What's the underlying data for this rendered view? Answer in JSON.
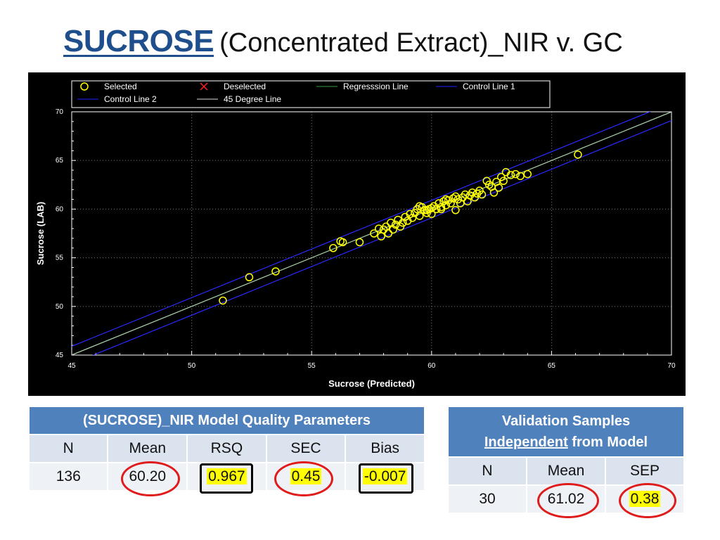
{
  "slide": {
    "title_main": "SUCROSE",
    "title_sub": "(Concentrated Extract)_NIR v. GC"
  },
  "chart_data": {
    "type": "scatter",
    "xlabel": "Sucrose (Predicted)",
    "ylabel": "Sucrose (LAB)",
    "xlim": [
      45,
      70
    ],
    "ylim": [
      45,
      70
    ],
    "x_ticks": [
      "45",
      "50",
      "55",
      "60",
      "65",
      "70"
    ],
    "y_ticks": [
      "45",
      "50",
      "55",
      "60",
      "65",
      "70"
    ],
    "grid": true,
    "legend": {
      "placement": "top",
      "entries": [
        {
          "label": "Selected",
          "marker": "circle",
          "color": "#ffff00"
        },
        {
          "label": "Deselected",
          "marker": "x",
          "color": "#ff2020"
        },
        {
          "label": "Regresssion Line",
          "marker": "line",
          "color": "#3a9a3a"
        },
        {
          "label": "Control Line 1",
          "marker": "line",
          "color": "#2020ff"
        },
        {
          "label": "Control Line 2",
          "marker": "line",
          "color": "#2020ff"
        },
        {
          "label": "45 Degree Line",
          "marker": "line",
          "color": "#dddddd"
        }
      ]
    },
    "colors": {
      "background": "#000000",
      "points": "#ffff00",
      "regression": "#9ccf9c",
      "control": "#2a2aff",
      "degree45": "#e8e8e8",
      "grid": "#777777"
    },
    "lines": {
      "degree45": [
        [
          45,
          45
        ],
        [
          70,
          70
        ]
      ],
      "regression": [
        [
          45,
          45.02
        ],
        [
          70,
          69.98
        ]
      ],
      "control_1": [
        [
          45,
          45.9
        ],
        [
          70,
          70.9
        ]
      ],
      "control_2": [
        [
          45,
          44.1
        ],
        [
          70,
          69.1
        ]
      ]
    },
    "series": [
      {
        "name": "Selected",
        "points": [
          [
            51.3,
            50.6
          ],
          [
            52.4,
            53.0
          ],
          [
            53.5,
            53.6
          ],
          [
            55.9,
            56.0
          ],
          [
            56.2,
            56.7
          ],
          [
            56.3,
            56.6
          ],
          [
            57.0,
            56.6
          ],
          [
            57.6,
            57.5
          ],
          [
            57.8,
            58.0
          ],
          [
            57.9,
            57.2
          ],
          [
            58.0,
            57.9
          ],
          [
            58.1,
            58.2
          ],
          [
            58.2,
            57.5
          ],
          [
            58.3,
            58.6
          ],
          [
            58.4,
            57.9
          ],
          [
            58.5,
            58.4
          ],
          [
            58.6,
            58.9
          ],
          [
            58.7,
            58.2
          ],
          [
            58.8,
            58.6
          ],
          [
            58.9,
            59.2
          ],
          [
            59.0,
            58.8
          ],
          [
            59.1,
            59.5
          ],
          [
            59.2,
            59.1
          ],
          [
            59.3,
            59.6
          ],
          [
            59.4,
            60.0
          ],
          [
            59.5,
            59.3
          ],
          [
            59.6,
            60.2
          ],
          [
            59.7,
            59.9
          ],
          [
            59.8,
            59.6
          ],
          [
            59.9,
            60.0
          ],
          [
            60.0,
            59.5
          ],
          [
            60.1,
            60.3
          ],
          [
            60.2,
            60.0
          ],
          [
            60.3,
            60.6
          ],
          [
            60.4,
            60.2
          ],
          [
            60.5,
            60.8
          ],
          [
            60.6,
            60.4
          ],
          [
            60.7,
            60.9
          ],
          [
            60.8,
            60.6
          ],
          [
            60.9,
            61.1
          ],
          [
            61.0,
            59.9
          ],
          [
            61.1,
            61.0
          ],
          [
            61.2,
            60.6
          ],
          [
            61.3,
            61.2
          ],
          [
            61.4,
            61.5
          ],
          [
            61.5,
            60.8
          ],
          [
            61.6,
            61.4
          ],
          [
            61.7,
            61.7
          ],
          [
            61.8,
            61.2
          ],
          [
            61.9,
            61.6
          ],
          [
            62.0,
            61.9
          ],
          [
            62.1,
            61.5
          ],
          [
            62.3,
            62.9
          ],
          [
            62.4,
            62.5
          ],
          [
            62.5,
            62.3
          ],
          [
            62.6,
            61.7
          ],
          [
            62.7,
            62.8
          ],
          [
            62.8,
            62.2
          ],
          [
            62.9,
            63.3
          ],
          [
            63.0,
            62.9
          ],
          [
            63.1,
            63.8
          ],
          [
            63.3,
            63.5
          ],
          [
            63.5,
            63.6
          ],
          [
            63.7,
            63.4
          ],
          [
            64.0,
            63.6
          ],
          [
            66.1,
            65.6
          ],
          [
            59.5,
            60.3
          ],
          [
            59.8,
            59.9
          ],
          [
            60.0,
            60.1
          ],
          [
            60.4,
            60.0
          ],
          [
            60.6,
            61.0
          ],
          [
            61.0,
            61.3
          ]
        ]
      }
    ]
  },
  "model_quality": {
    "header": "(SUCROSE)_NIR Model Quality Parameters",
    "columns": [
      "N",
      "Mean",
      "RSQ",
      "SEC",
      "Bias"
    ],
    "values": [
      "136",
      "60.20",
      "0.967",
      "0.45",
      "-0.007"
    ]
  },
  "validation": {
    "header_line1": "Validation Samples",
    "header_underlined": "Independent",
    "header_rest": " from Model",
    "columns": [
      "N",
      "Mean",
      "SEP"
    ],
    "values": [
      "30",
      "61.02",
      "0.38"
    ]
  }
}
